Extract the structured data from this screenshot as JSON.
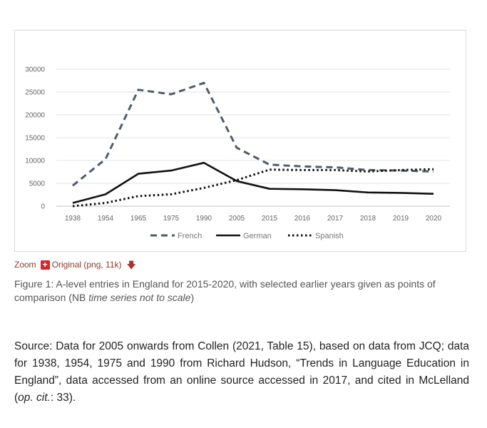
{
  "chart_data": {
    "type": "line",
    "categories": [
      "1938",
      "1954",
      "1965",
      "1975",
      "1990",
      "2005",
      "2015",
      "2016",
      "2017",
      "2018",
      "2019",
      "2020"
    ],
    "ylim": [
      0,
      30000
    ],
    "yticks": [
      "30000",
      "25000",
      "20000",
      "15000",
      "10000",
      "5000",
      "0"
    ],
    "ytick_values": [
      30000,
      25000,
      20000,
      15000,
      10000,
      5000,
      0
    ],
    "grid": "horizontal",
    "legend_position": "bottom",
    "series": [
      {
        "name": "French",
        "style": "dashed",
        "color": "#4f5b6e",
        "values": [
          4500,
          10300,
          25500,
          24500,
          27000,
          12800,
          9100,
          8700,
          8500,
          7900,
          7800,
          7600
        ]
      },
      {
        "name": "German",
        "style": "solid",
        "color": "#111111",
        "values": [
          700,
          2600,
          7100,
          7800,
          9500,
          5500,
          3800,
          3700,
          3500,
          3000,
          2900,
          2700
        ]
      },
      {
        "name": "Spanish",
        "style": "dotted",
        "color": "#111111",
        "values": [
          0,
          700,
          2200,
          2600,
          4000,
          5700,
          8000,
          7900,
          7900,
          7600,
          7900,
          8100
        ]
      }
    ]
  },
  "figure_links": {
    "zoom": "Zoom",
    "original": "Original (png, 11k)"
  },
  "caption": {
    "prefix": "Figure 1: A-level entries in England for 2015-2020, with selected earlier years given as points of comparison (NB ",
    "italic": "time series not to scale",
    "suffix": ")"
  },
  "source": {
    "part1": "Source: Data for 2005 onwards from Collen (2021, Table 15), based on data from JCQ; data for 1938, 1954, 1975 and 1990 from Richard Hudson, “Trends in Language Education in England”, data accessed from an online source accessed in 2017, and cited in McLelland (",
    "italic": "op. cit.",
    "part2": ": 33)."
  }
}
